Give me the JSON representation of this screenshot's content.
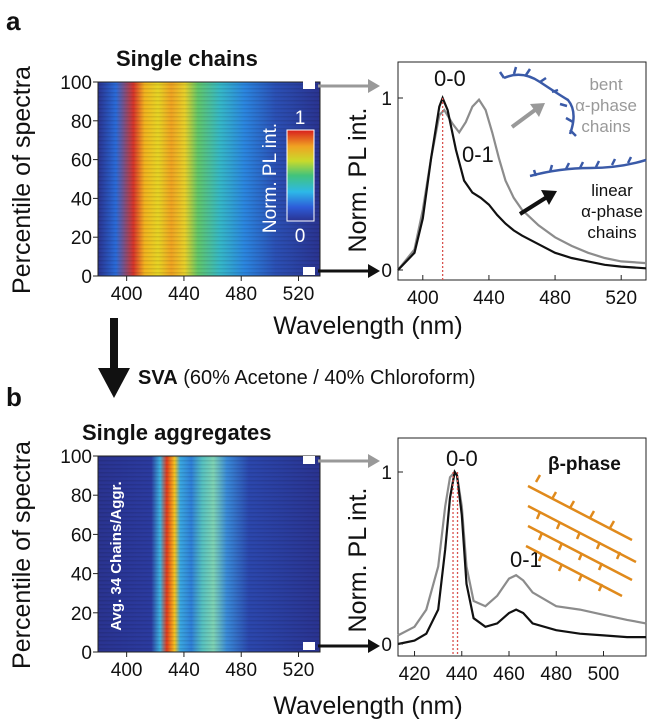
{
  "panel_a": {
    "letter": "a",
    "title": "Single chains",
    "heatmap_ylabel": "Percentile of spectra",
    "colorbar_label": "Norm. PL int.",
    "colorbar_max": "1",
    "colorbar_min": "0",
    "x_ticks": [
      "400",
      "440",
      "480",
      "520"
    ],
    "y_ticks": [
      "0",
      "20",
      "40",
      "60",
      "80",
      "100"
    ],
    "spectrum_ylabel": "Norm. PL int.",
    "spectrum_y_ticks": [
      "0",
      "1"
    ],
    "spectrum_x_ticks": [
      "400",
      "440",
      "480",
      "520"
    ],
    "peak_00": "0-0",
    "peak_01": "0-1",
    "bent_label": [
      "bent",
      "α-phase",
      "chains"
    ],
    "linear_label": [
      "linear",
      "α-phase",
      "chains"
    ],
    "xlabel": "Wavelength (nm)"
  },
  "sva": {
    "bold": "SVA",
    "rest": " (60% Acetone / 40% Chloroform)"
  },
  "panel_b": {
    "letter": "b",
    "title": "Single aggregates",
    "heatmap_ylabel": "Percentile of spectra",
    "inset_text": "Avg. 34 Chains/Aggr.",
    "x_ticks": [
      "400",
      "440",
      "480",
      "520"
    ],
    "y_ticks": [
      "0",
      "20",
      "40",
      "60",
      "80",
      "100"
    ],
    "spectrum_ylabel": "Norm. PL int.",
    "spectrum_y_ticks": [
      "0",
      "1"
    ],
    "spectrum_x_ticks": [
      "420",
      "440",
      "460",
      "480",
      "500"
    ],
    "peak_00": "0-0",
    "peak_01": "0-1",
    "phase_label": "β-phase",
    "xlabel": "Wavelength (nm)"
  },
  "colors": {
    "heat_bg": "#2a3390",
    "gray_spec": "#8c8c8c",
    "black_spec": "#111111",
    "bent_chain": "#3a5aa8",
    "beta_chain": "#e08a1c",
    "dotted": "#d9534f"
  },
  "chart_data": [
    {
      "type": "heatmap",
      "panel": "a-left",
      "x_range": [
        380,
        535
      ],
      "y_range": [
        0,
        100
      ],
      "colormap_range": [
        0,
        1
      ],
      "peak_bands_nm": [
        410,
        435
      ]
    },
    {
      "type": "line",
      "panel": "a-right",
      "x_range": [
        385,
        535
      ],
      "y_range": [
        0,
        1
      ],
      "series": [
        {
          "x": [
            385,
            395,
            400,
            405,
            410,
            413,
            418,
            422,
            426,
            430,
            434,
            438,
            442,
            446,
            450,
            455,
            460,
            470,
            480,
            490,
            500,
            510,
            520,
            535
          ],
          "values": [
            0.0,
            0.12,
            0.35,
            0.65,
            0.9,
            0.93,
            0.85,
            0.8,
            0.86,
            0.95,
            0.99,
            0.93,
            0.8,
            0.65,
            0.52,
            0.42,
            0.35,
            0.26,
            0.19,
            0.14,
            0.1,
            0.07,
            0.05,
            0.04
          ]
        },
        {
          "x": [
            385,
            395,
            400,
            405,
            410,
            412,
            415,
            420,
            425,
            430,
            435,
            440,
            445,
            450,
            455,
            460,
            470,
            480,
            490,
            500,
            510,
            520,
            535
          ],
          "values": [
            0.0,
            0.1,
            0.3,
            0.65,
            0.95,
            1.0,
            0.93,
            0.7,
            0.52,
            0.45,
            0.42,
            0.38,
            0.32,
            0.27,
            0.23,
            0.2,
            0.15,
            0.1,
            0.07,
            0.05,
            0.03,
            0.02,
            0.01
          ]
        }
      ]
    },
    {
      "type": "heatmap",
      "panel": "b-left",
      "x_range": [
        380,
        535
      ],
      "y_range": [
        0,
        100
      ],
      "peak_bands_nm": [
        437,
        462
      ]
    },
    {
      "type": "line",
      "panel": "b-right",
      "x_range": [
        413,
        518
      ],
      "y_range": [
        0,
        1
      ],
      "series": [
        {
          "x": [
            413,
            420,
            425,
            430,
            433,
            435,
            437,
            438,
            440,
            442,
            445,
            450,
            455,
            460,
            463,
            466,
            470,
            480,
            490,
            500,
            510,
            518
          ],
          "values": [
            0.05,
            0.1,
            0.2,
            0.45,
            0.8,
            0.97,
            1.0,
            0.98,
            0.8,
            0.45,
            0.25,
            0.22,
            0.28,
            0.38,
            0.4,
            0.37,
            0.3,
            0.22,
            0.2,
            0.17,
            0.14,
            0.12
          ]
        },
        {
          "x": [
            413,
            420,
            425,
            430,
            433,
            435,
            437,
            438,
            440,
            442,
            445,
            450,
            455,
            460,
            463,
            466,
            470,
            480,
            490,
            500,
            510,
            518
          ],
          "values": [
            0.0,
            0.02,
            0.06,
            0.2,
            0.55,
            0.85,
            1.0,
            0.98,
            0.75,
            0.35,
            0.15,
            0.1,
            0.12,
            0.18,
            0.2,
            0.18,
            0.12,
            0.08,
            0.06,
            0.05,
            0.04,
            0.04
          ]
        }
      ]
    }
  ]
}
